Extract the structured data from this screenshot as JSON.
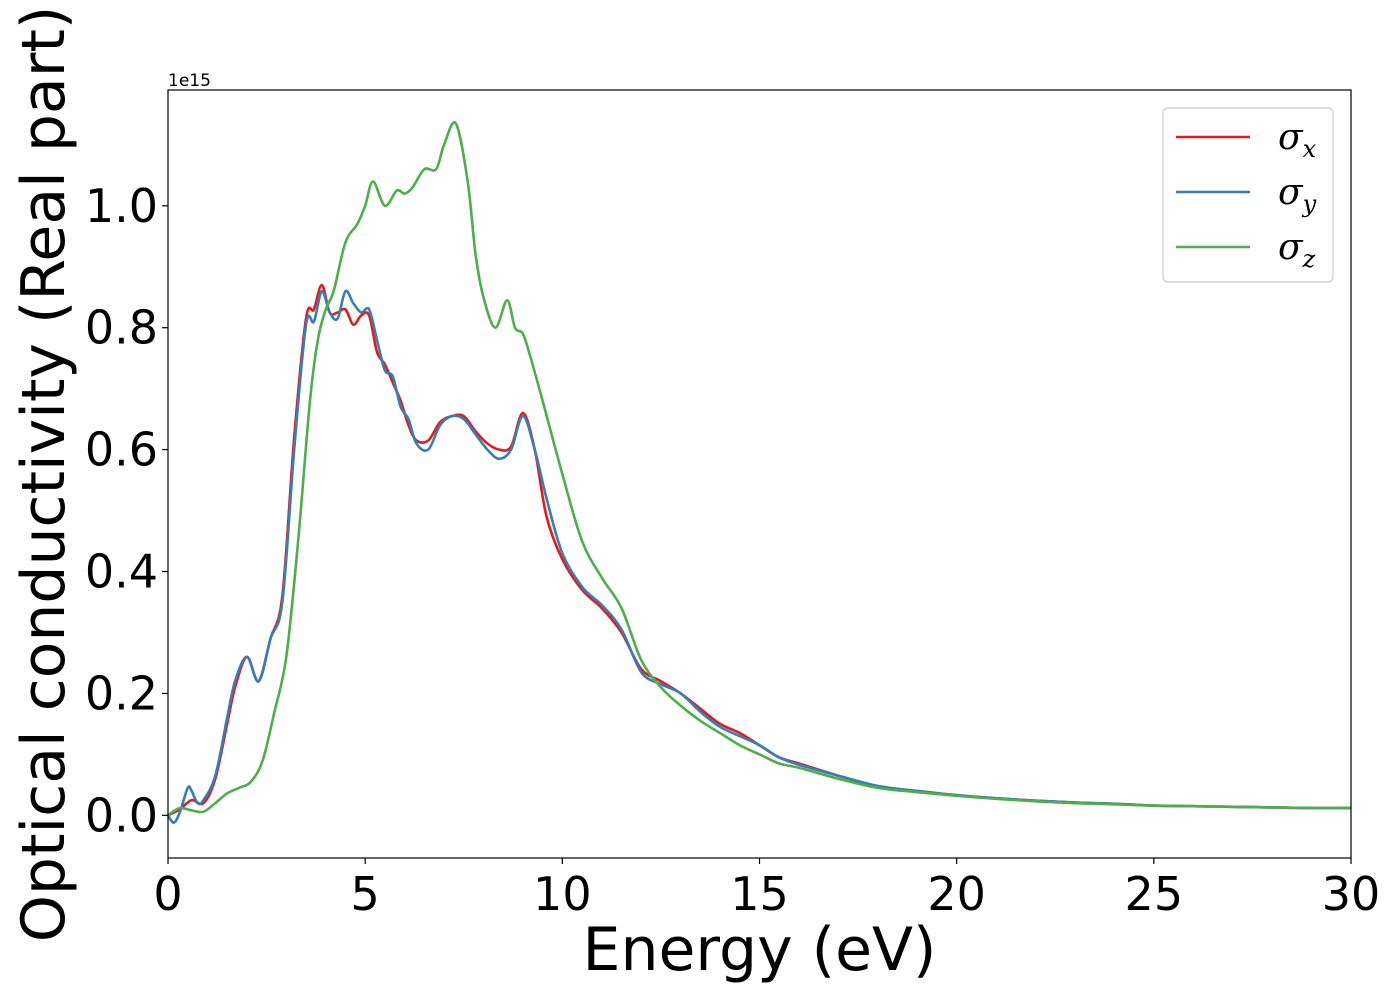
{
  "chart_data": {
    "type": "line",
    "title": "",
    "xlabel": "Energy (eV)",
    "ylabel": "Optical conductivity (Real part)",
    "y_offset_text": "1e15",
    "xlim": [
      0,
      30
    ],
    "ylim": [
      -0.07,
      1.19
    ],
    "x_ticks": [
      0,
      5,
      10,
      15,
      20,
      25,
      30
    ],
    "x_tick_labels": [
      "0",
      "5",
      "10",
      "15",
      "20",
      "25",
      "30"
    ],
    "y_ticks": [
      0.0,
      0.2,
      0.4,
      0.6,
      0.8,
      1.0
    ],
    "y_tick_labels": [
      "0.0",
      "0.2",
      "0.4",
      "0.6",
      "0.8",
      "1.0"
    ],
    "grid": false,
    "legend_position": "top-right",
    "series": [
      {
        "name": "σx",
        "symbol": "σ",
        "subscript": "x",
        "color": "#e41a1c",
        "x": [
          0,
          0.3,
          0.6,
          0.9,
          1.2,
          1.5,
          1.7,
          2.0,
          2.3,
          2.6,
          2.9,
          3.2,
          3.5,
          3.7,
          3.9,
          4.1,
          4.3,
          4.5,
          4.7,
          4.9,
          5.1,
          5.3,
          5.5,
          5.7,
          5.9,
          6.1,
          6.3,
          6.6,
          6.9,
          7.2,
          7.5,
          7.8,
          8.1,
          8.4,
          8.7,
          9.0,
          9.3,
          9.6,
          10.0,
          10.5,
          11.0,
          11.5,
          12.0,
          12.5,
          13.0,
          13.5,
          14.0,
          14.5,
          15.0,
          15.5,
          16.0,
          17.0,
          18.0,
          19.0,
          20.0,
          21.0,
          22.0,
          23.0,
          24.0,
          25.0,
          26.0,
          27.0,
          28.0,
          29.0,
          30.0
        ],
        "y": [
          0.0,
          0.01,
          0.025,
          0.02,
          0.06,
          0.15,
          0.21,
          0.26,
          0.22,
          0.29,
          0.36,
          0.62,
          0.815,
          0.83,
          0.87,
          0.825,
          0.825,
          0.83,
          0.805,
          0.82,
          0.82,
          0.76,
          0.74,
          0.71,
          0.68,
          0.64,
          0.615,
          0.615,
          0.645,
          0.655,
          0.655,
          0.63,
          0.61,
          0.6,
          0.605,
          0.66,
          0.6,
          0.49,
          0.42,
          0.37,
          0.34,
          0.3,
          0.24,
          0.22,
          0.2,
          0.175,
          0.15,
          0.135,
          0.115,
          0.095,
          0.085,
          0.065,
          0.048,
          0.04,
          0.033,
          0.028,
          0.024,
          0.021,
          0.019,
          0.016,
          0.015,
          0.014,
          0.013,
          0.012,
          0.012
        ]
      },
      {
        "name": "σy",
        "symbol": "σ",
        "subscript": "y",
        "color": "#377eb8",
        "x": [
          0,
          0.15,
          0.3,
          0.5,
          0.6,
          0.75,
          0.9,
          1.2,
          1.5,
          1.7,
          2.0,
          2.3,
          2.6,
          2.9,
          3.2,
          3.5,
          3.7,
          3.9,
          4.1,
          4.3,
          4.5,
          4.7,
          4.9,
          5.1,
          5.3,
          5.5,
          5.7,
          5.9,
          6.1,
          6.3,
          6.6,
          6.9,
          7.2,
          7.5,
          7.8,
          8.1,
          8.4,
          8.7,
          9.0,
          9.3,
          9.6,
          10.0,
          10.5,
          11.0,
          11.5,
          12.0,
          12.5,
          13.0,
          13.5,
          14.0,
          14.5,
          15.0,
          15.5,
          16.0,
          17.0,
          18.0,
          19.0,
          20.0,
          21.0,
          22.0,
          23.0,
          24.0,
          25.0,
          26.0,
          27.0,
          28.0,
          29.0,
          30.0
        ],
        "y": [
          0.0,
          -0.012,
          0.005,
          0.045,
          0.04,
          0.02,
          0.025,
          0.065,
          0.16,
          0.22,
          0.26,
          0.22,
          0.29,
          0.35,
          0.6,
          0.805,
          0.81,
          0.86,
          0.825,
          0.815,
          0.86,
          0.84,
          0.825,
          0.83,
          0.78,
          0.73,
          0.72,
          0.67,
          0.65,
          0.61,
          0.6,
          0.64,
          0.655,
          0.65,
          0.625,
          0.6,
          0.585,
          0.6,
          0.655,
          0.6,
          0.52,
          0.43,
          0.375,
          0.345,
          0.305,
          0.235,
          0.215,
          0.2,
          0.17,
          0.145,
          0.13,
          0.115,
          0.095,
          0.083,
          0.065,
          0.048,
          0.04,
          0.033,
          0.028,
          0.024,
          0.021,
          0.019,
          0.016,
          0.015,
          0.014,
          0.013,
          0.012,
          0.012
        ]
      },
      {
        "name": "σz",
        "symbol": "σ",
        "subscript": "z",
        "color": "#4daf4a",
        "x": [
          0,
          0.3,
          0.6,
          0.9,
          1.2,
          1.5,
          1.8,
          2.1,
          2.4,
          2.7,
          3.0,
          3.3,
          3.6,
          3.8,
          4.0,
          4.2,
          4.5,
          4.8,
          5.0,
          5.2,
          5.5,
          5.8,
          6.0,
          6.2,
          6.5,
          6.8,
          7.0,
          7.3,
          7.6,
          7.8,
          8.0,
          8.3,
          8.6,
          8.8,
          9.0,
          9.2,
          9.5,
          10.0,
          10.5,
          11.0,
          11.5,
          12.0,
          12.5,
          13.0,
          13.5,
          14.0,
          14.5,
          15.0,
          15.5,
          16.0,
          17.0,
          18.0,
          19.0,
          20.0,
          21.0,
          22.0,
          23.0,
          24.0,
          25.0,
          26.0,
          27.0,
          28.0,
          29.0,
          30.0
        ],
        "y": [
          0.0,
          0.012,
          0.008,
          0.006,
          0.02,
          0.036,
          0.045,
          0.055,
          0.09,
          0.17,
          0.26,
          0.45,
          0.68,
          0.78,
          0.83,
          0.86,
          0.94,
          0.97,
          1.0,
          1.04,
          1.0,
          1.025,
          1.02,
          1.03,
          1.06,
          1.06,
          1.1,
          1.135,
          1.04,
          0.92,
          0.85,
          0.8,
          0.845,
          0.8,
          0.79,
          0.75,
          0.68,
          0.56,
          0.45,
          0.39,
          0.34,
          0.255,
          0.21,
          0.18,
          0.155,
          0.135,
          0.115,
          0.1,
          0.085,
          0.078,
          0.06,
          0.045,
          0.038,
          0.032,
          0.027,
          0.023,
          0.02,
          0.018,
          0.016,
          0.015,
          0.014,
          0.013,
          0.012,
          0.012
        ]
      }
    ]
  }
}
